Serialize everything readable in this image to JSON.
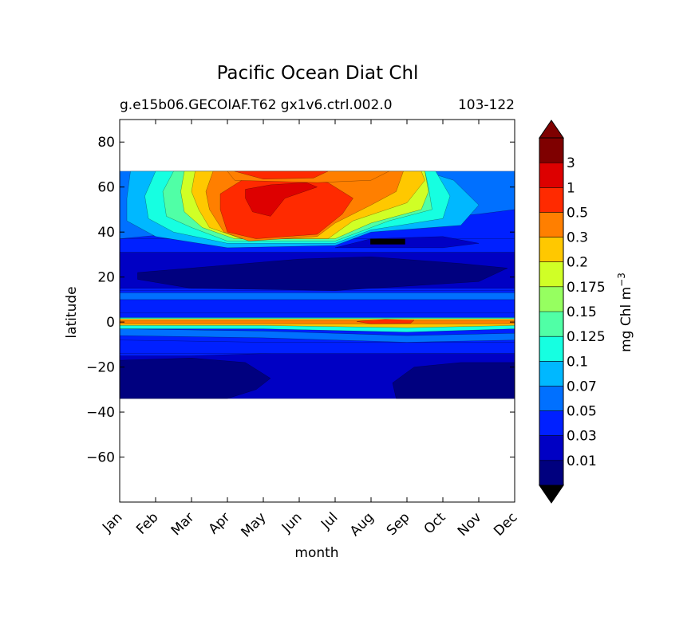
{
  "chart_data": {
    "type": "heatmap",
    "title": "Pacific Ocean Diat Chl",
    "subtitle_left": "g.e15b06.GECOIAF.T62 gx1v6.ctrl.002.0",
    "subtitle_right": "103-122",
    "xlabel": "month",
    "ylabel": "latitude",
    "x_ticks": [
      "Jan",
      "Feb",
      "Mar",
      "Apr",
      "May",
      "Jun",
      "Jul",
      "Aug",
      "Sep",
      "Oct",
      "Nov",
      "Dec"
    ],
    "y_ticks": [
      80,
      60,
      40,
      20,
      0,
      -20,
      -40,
      -60
    ],
    "y_tick_labels": [
      "80",
      "60",
      "40",
      "20",
      "0",
      "−20",
      "−40",
      "−60"
    ],
    "ylim": [
      -80,
      90
    ],
    "data_lat_range": [
      -34,
      67
    ],
    "colorbar": {
      "label": "mg Chl m",
      "label_superscript": "−3",
      "levels": [
        "0.01",
        "0.03",
        "0.05",
        "0.07",
        "0.1",
        "0.125",
        "0.15",
        "0.175",
        "0.2",
        "0.3",
        "0.5",
        "1",
        "3"
      ],
      "colors": [
        "#00007f",
        "#0000c4",
        "#0020ff",
        "#0070ff",
        "#00b8ff",
        "#16ffe1",
        "#50ffa6",
        "#96ff60",
        "#d0ff26",
        "#ffc800",
        "#ff7f00",
        "#ff2a00",
        "#dd0000",
        "#7f0000"
      ],
      "extend": "both"
    },
    "latitude_bands": [
      {
        "lat": [
          -34,
          -15
        ],
        "value": "0.01-0.03 / 0.03-0.05"
      },
      {
        "lat": [
          -15,
          -2
        ],
        "value": "0.03-0.07"
      },
      {
        "lat": [
          -2,
          2
        ],
        "value": "0.2-0.5 (equatorial band, 0.5-1 in Aug-Sep)"
      },
      {
        "lat": [
          12,
          30
        ],
        "value": "<0.01"
      },
      {
        "lat": [
          35,
          67
        ],
        "value": "0.1-3 (spring bloom Mar-Sep, peak >3 in May-Jun)"
      }
    ]
  }
}
